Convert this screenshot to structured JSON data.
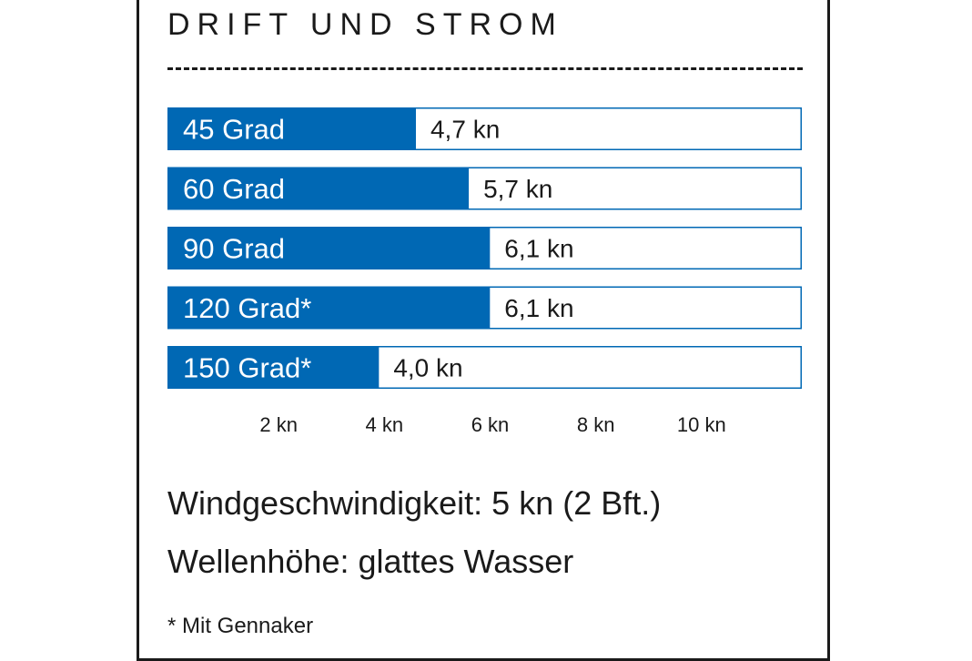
{
  "chart_data": {
    "type": "bar",
    "orientation": "horizontal",
    "title": "DRIFT UND STROM",
    "categories": [
      "45 Grad",
      "60 Grad",
      "90 Grad",
      "120 Grad*",
      "150 Grad*"
    ],
    "values": [
      4.7,
      5.7,
      6.1,
      6.1,
      4.0
    ],
    "value_labels": [
      "4,7 kn",
      "5,7 kn",
      "6,1 kn",
      "6,1 kn",
      "4,0 kn"
    ],
    "x_ticks": [
      2,
      4,
      6,
      8,
      10
    ],
    "x_tick_labels": [
      "2 kn",
      "4 kn",
      "6 kn",
      "8 kn",
      "10 kn"
    ],
    "xlim": [
      0,
      12
    ],
    "grid": false,
    "bar_color": "#0068b4",
    "track_border_color": "#0068b4"
  },
  "info": {
    "wind": "Windgeschwindigkeit: 5 kn (2 Bft.)",
    "wave": "Wellenhöhe: glattes Wasser",
    "footnote": "* Mit Gennaker"
  }
}
